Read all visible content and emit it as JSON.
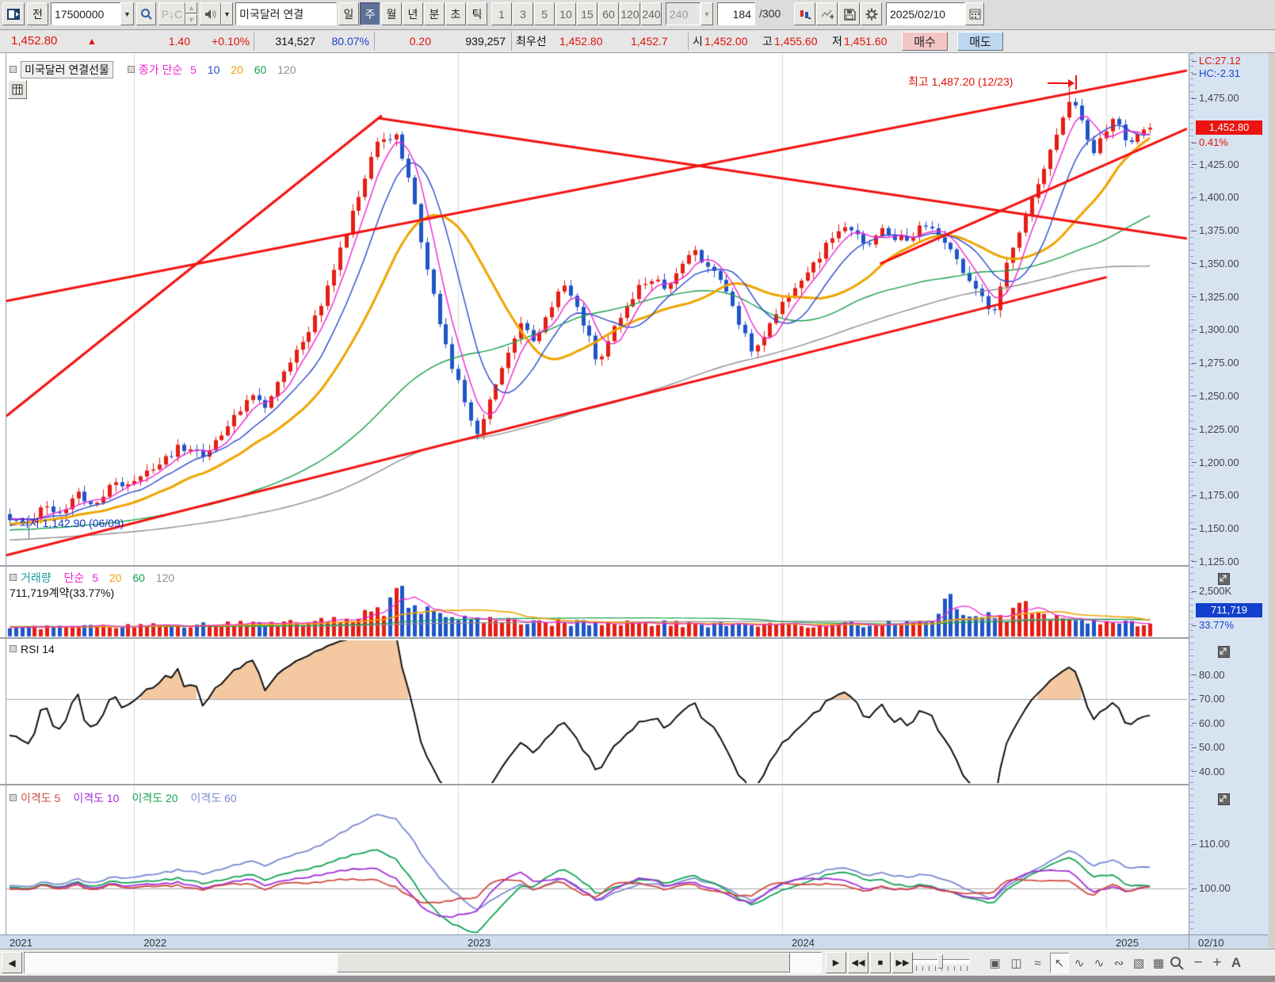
{
  "icons": {
    "dropdown": "▼",
    "spin_up": "▲",
    "spin_down": "▼",
    "up_triangle": "▲",
    "left_tri": "◀"
  },
  "toolbar": {
    "prev_label": "전",
    "account_value": "17500000",
    "symbol_value": "미국달러 연결",
    "period_buttons": [
      "일",
      "주",
      "월",
      "년",
      "분",
      "초",
      "틱"
    ],
    "period_selected": "주",
    "interval_buttons": [
      "1",
      "3",
      "5",
      "10",
      "15",
      "60",
      "120",
      "240"
    ],
    "interval_dropdown": "240",
    "pc_label": "P↓C",
    "bar_count": "184",
    "bar_total": "/300",
    "date_value": "2025/02/10"
  },
  "info_bar": {
    "price": "1,452.80",
    "arrow": "▲",
    "change": "1.40",
    "change_pct": "+0.10%",
    "volume": "314,527",
    "volume_pct": "80.07%",
    "tick_diff": "0.20",
    "open_interest": "939,257",
    "best_label": "최우선",
    "best_bid": "1,452.80",
    "best_ask": "1,452.7",
    "open_label": "시",
    "open": "1,452.00",
    "high_label": "고",
    "high": "1,455.60",
    "low_label": "저",
    "low": "1,451.60",
    "buy_label": "매수",
    "sell_label": "매도"
  },
  "main_pane": {
    "title": "미국달러 연결선물",
    "legend_close": "종가 단순",
    "p5": "5",
    "p10": "10",
    "p20": "20",
    "p60": "60",
    "p120": "120",
    "high_annotation": "최고 1,487.20 (12/23)",
    "low_annotation": "←최저 1,142.90 (06/09)",
    "lc_label": "LC:27.12",
    "hc_label": "HC:-2.31",
    "price_badge": "1,452.80",
    "pct_badge": "0.41%"
  },
  "volume_pane": {
    "title": "거래량",
    "legend_ma": "단순",
    "p5": "5",
    "p20": "20",
    "p60": "60",
    "p120": "120",
    "value_line": "711,719계약(33.77%)",
    "badge": "711,719",
    "badge_pct": "33.77%"
  },
  "rsi_pane": {
    "title": "RSI 14"
  },
  "disparity_pane": {
    "titles": [
      "이격도 5",
      "이격도 10",
      "이격도 20",
      "이격도 60"
    ]
  },
  "time_axis": {
    "labels": [
      "2021",
      "2022",
      "2023",
      "2024",
      "2025"
    ],
    "current": "02/10"
  },
  "bottom_toolbar": {
    "scroll_left": "◀",
    "playback": [
      {
        "name": "play",
        "glyph": "▶"
      },
      {
        "name": "rewind",
        "glyph": "◀◀"
      },
      {
        "name": "stop",
        "glyph": "■"
      },
      {
        "name": "fast-forward",
        "glyph": "▶▶"
      }
    ],
    "window_tools": [
      {
        "name": "new-window",
        "glyph": "▣"
      },
      {
        "name": "cascade-windows",
        "glyph": "◫"
      },
      {
        "name": "pattern-search",
        "glyph": "≈"
      }
    ],
    "chart_tools": [
      {
        "name": "cursor-tool",
        "glyph": "↖"
      },
      {
        "name": "baseline-tool",
        "glyph": "∿"
      },
      {
        "name": "indicator-tool",
        "glyph": "∿"
      },
      {
        "name": "wave-tool",
        "glyph": "∾"
      },
      {
        "name": "object-tool",
        "glyph": "▧"
      },
      {
        "name": "mini-chart-tool",
        "glyph": "▦"
      }
    ],
    "zoom_out": "−",
    "zoom_in": "+",
    "font_tool": "A"
  },
  "colors": {
    "candle_up": "#e51e14",
    "candle_down": "#2055c8",
    "trend_line": "#f21210",
    "ma5": "#ee25d2",
    "ma10": "#2b49cf",
    "ma20": "#efa500",
    "ma60": "#16a04a",
    "ma120": "#8f8f8f",
    "volume_title": "#1898a0",
    "rsi_line": "#111111",
    "rsi_fill": "rgba(238,170,110,0.65)",
    "disparity": [
      "#cf4a42",
      "#a230d8",
      "#14a455",
      "#7a8ad0"
    ],
    "axis_bg": "#d8e3f2",
    "badge_price_bg": "#ea1512",
    "badge_volume_bg": "#1240cc",
    "gridline": "#dcdcdc",
    "refline": "#a8a8a8"
  },
  "chart_data": {
    "type": "candlestick",
    "instrument": "미국달러 연결선물",
    "timeframe": "weekly",
    "bars_visible": 184,
    "last_close": 1452.8,
    "last_change_pct": 0.41,
    "high_anchor": {
      "price": 1487.2,
      "date": "12/23"
    },
    "low_anchor": {
      "price": 1142.9,
      "date": "06/09"
    },
    "lc": 27.12,
    "hc": -2.31,
    "price_axis": {
      "ticks": [
        [
          1475,
          "1,475.00"
        ],
        [
          1425,
          "1,425.00"
        ],
        [
          1400,
          "1,400.00"
        ],
        [
          1375,
          "1,375.00"
        ],
        [
          1350,
          "1,350.00"
        ],
        [
          1325,
          "1,325.00"
        ],
        [
          1300,
          "1,300.00"
        ],
        [
          1275,
          "1,275.00"
        ],
        [
          1250,
          "1,250.00"
        ],
        [
          1225,
          "1,225.00"
        ],
        [
          1200,
          "1,200.00"
        ],
        [
          1175,
          "1,175.00"
        ],
        [
          1150,
          "1,150.00"
        ],
        [
          1125,
          "1,125.00"
        ]
      ]
    },
    "ma_periods": [
      5,
      10,
      20,
      60,
      120
    ],
    "close_keypoints": [
      [
        0,
        1158
      ],
      [
        0.015,
        1150
      ],
      [
        0.03,
        1168
      ],
      [
        0.045,
        1160
      ],
      [
        0.06,
        1175
      ],
      [
        0.075,
        1170
      ],
      [
        0.09,
        1182
      ],
      [
        0.111,
        1188
      ],
      [
        0.13,
        1200
      ],
      [
        0.15,
        1212
      ],
      [
        0.17,
        1205
      ],
      [
        0.19,
        1228
      ],
      [
        0.21,
        1250
      ],
      [
        0.225,
        1242
      ],
      [
        0.24,
        1268
      ],
      [
        0.255,
        1288
      ],
      [
        0.27,
        1312
      ],
      [
        0.28,
        1338
      ],
      [
        0.29,
        1362
      ],
      [
        0.3,
        1388
      ],
      [
        0.31,
        1412
      ],
      [
        0.32,
        1438
      ],
      [
        0.33,
        1442
      ],
      [
        0.337,
        1452
      ],
      [
        0.345,
        1430
      ],
      [
        0.352,
        1408
      ],
      [
        0.36,
        1372
      ],
      [
        0.368,
        1340
      ],
      [
        0.376,
        1310
      ],
      [
        0.385,
        1282
      ],
      [
        0.394,
        1258
      ],
      [
        0.402,
        1235
      ],
      [
        0.41,
        1222
      ],
      [
        0.418,
        1240
      ],
      [
        0.428,
        1262
      ],
      [
        0.438,
        1288
      ],
      [
        0.448,
        1305
      ],
      [
        0.458,
        1290
      ],
      [
        0.468,
        1305
      ],
      [
        0.478,
        1322
      ],
      [
        0.488,
        1335
      ],
      [
        0.498,
        1315
      ],
      [
        0.508,
        1295
      ],
      [
        0.515,
        1272
      ],
      [
        0.525,
        1292
      ],
      [
        0.538,
        1315
      ],
      [
        0.55,
        1330
      ],
      [
        0.562,
        1340
      ],
      [
        0.575,
        1332
      ],
      [
        0.588,
        1348
      ],
      [
        0.6,
        1358
      ],
      [
        0.612,
        1348
      ],
      [
        0.625,
        1332
      ],
      [
        0.638,
        1310
      ],
      [
        0.65,
        1285
      ],
      [
        0.662,
        1298
      ],
      [
        0.677,
        1318
      ],
      [
        0.69,
        1330
      ],
      [
        0.702,
        1348
      ],
      [
        0.715,
        1362
      ],
      [
        0.728,
        1378
      ],
      [
        0.74,
        1372
      ],
      [
        0.752,
        1362
      ],
      [
        0.765,
        1375
      ],
      [
        0.778,
        1368
      ],
      [
        0.79,
        1372
      ],
      [
        0.802,
        1380
      ],
      [
        0.815,
        1372
      ],
      [
        0.828,
        1355
      ],
      [
        0.84,
        1335
      ],
      [
        0.852,
        1328
      ],
      [
        0.862,
        1312
      ],
      [
        0.872,
        1342
      ],
      [
        0.882,
        1365
      ],
      [
        0.892,
        1388
      ],
      [
        0.902,
        1412
      ],
      [
        0.912,
        1435
      ],
      [
        0.922,
        1455
      ],
      [
        0.93,
        1475
      ],
      [
        0.936,
        1468
      ],
      [
        0.944,
        1448
      ],
      [
        0.952,
        1435
      ],
      [
        0.96,
        1450
      ],
      [
        0.968,
        1462
      ],
      [
        0.976,
        1448
      ],
      [
        0.984,
        1440
      ],
      [
        0.992,
        1452
      ],
      [
        1,
        1452.8
      ]
    ],
    "trend_lines": [
      [
        0,
        1235,
        0.318,
        1462
      ],
      [
        0.315,
        1460,
        1,
        1369
      ],
      [
        0,
        1322,
        1,
        1496
      ],
      [
        0.74,
        1350,
        1,
        1452
      ],
      [
        0,
        1130,
        0.932,
        1340
      ]
    ],
    "volume_axis": {
      "ticks": [
        [
          2500,
          "2,500K"
        ]
      ],
      "last": 711.719,
      "last_pct": 33.77
    },
    "volume_keypoints": [
      [
        0,
        500
      ],
      [
        0.1,
        580
      ],
      [
        0.15,
        650
      ],
      [
        0.2,
        720
      ],
      [
        0.25,
        800
      ],
      [
        0.3,
        1050
      ],
      [
        0.33,
        1600
      ],
      [
        0.34,
        2600
      ],
      [
        0.35,
        2100
      ],
      [
        0.365,
        1400
      ],
      [
        0.385,
        1000
      ],
      [
        0.42,
        850
      ],
      [
        0.46,
        780
      ],
      [
        0.5,
        760
      ],
      [
        0.55,
        700
      ],
      [
        0.6,
        700
      ],
      [
        0.65,
        640
      ],
      [
        0.7,
        620
      ],
      [
        0.75,
        680
      ],
      [
        0.79,
        760
      ],
      [
        0.815,
        1000
      ],
      [
        0.825,
        2950
      ],
      [
        0.833,
        1500
      ],
      [
        0.845,
        950
      ],
      [
        0.862,
        1300
      ],
      [
        0.875,
        900
      ],
      [
        0.888,
        2400
      ],
      [
        0.895,
        1400
      ],
      [
        0.91,
        950
      ],
      [
        0.93,
        1050
      ],
      [
        0.95,
        800
      ],
      [
        0.97,
        750
      ],
      [
        1,
        712
      ]
    ],
    "rsi": {
      "period": 14,
      "overbought": 70,
      "ticks": [
        [
          80,
          "80.00"
        ],
        [
          70,
          "70.00"
        ],
        [
          60,
          "60.00"
        ],
        [
          50,
          "50.00"
        ],
        [
          40,
          "40.00"
        ]
      ]
    },
    "disparity": {
      "periods": [
        5,
        10,
        20,
        60
      ],
      "baseline": 100,
      "ticks": [
        [
          110,
          "110.00"
        ],
        [
          100,
          "100.00"
        ]
      ]
    },
    "x_axis": {
      "year_labels": [
        "2021",
        "2022",
        "2023",
        "2024",
        "2025"
      ],
      "year_week_boundaries": [
        20.5,
        72.5,
        124.5,
        176.5
      ],
      "current_label": "02/10"
    }
  }
}
